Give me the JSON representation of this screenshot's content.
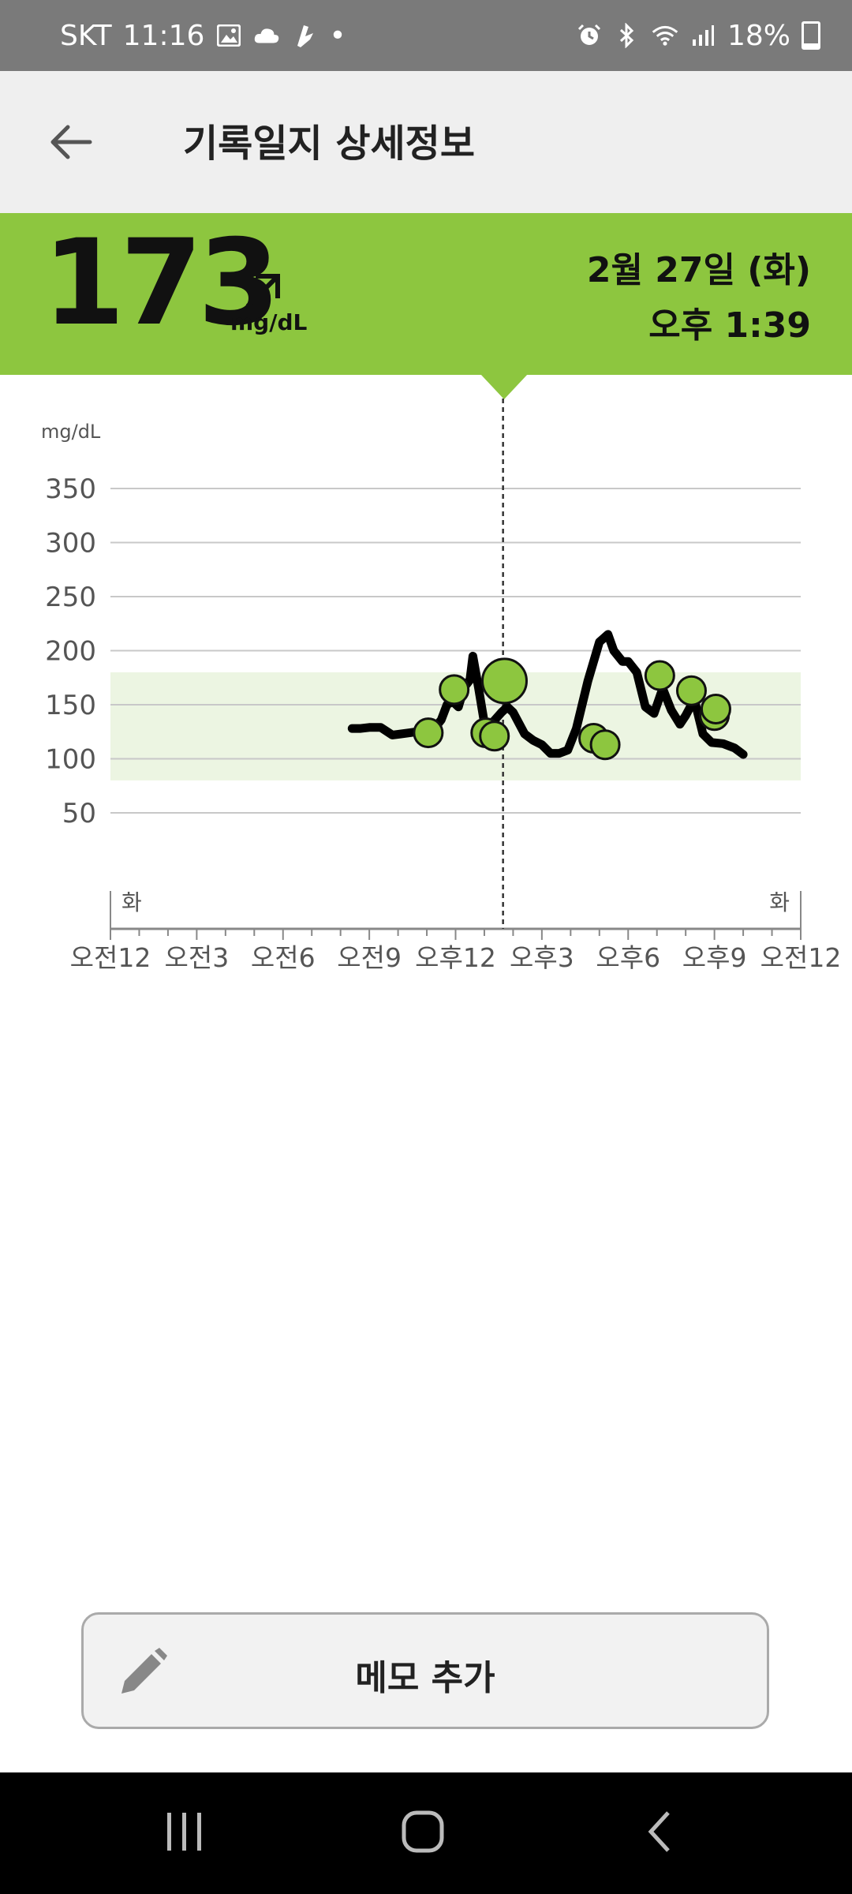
{
  "status_bar": {
    "carrier": "SKT",
    "time": "11:16",
    "battery": "18%",
    "dot": "•",
    "left_icons": [
      "image-icon",
      "cloud-icon",
      "app-icon"
    ],
    "right_icons": [
      "alarm-icon",
      "bluetooth-icon",
      "wifi-icon",
      "signal-icon",
      "battery-icon"
    ]
  },
  "header": {
    "title": "기록일지 상세정보",
    "back_icon": "arrow-left-icon"
  },
  "reading": {
    "value": "173",
    "unit": "mg/dL",
    "trend_icon": "arrow-up-right-icon",
    "date": "2월 27일 (화)",
    "time": "오후 1:39",
    "band_color": "#8dc63f"
  },
  "chart_data": {
    "type": "line",
    "ylabel": "mg/dL",
    "ylim": [
      0,
      375
    ],
    "y_ticks": [
      350,
      300,
      250,
      200,
      150,
      100,
      50
    ],
    "target_range": [
      80,
      180
    ],
    "x_range_hours": [
      0,
      24
    ],
    "x_tick_labels": [
      "오전12",
      "오전3",
      "오전6",
      "오전9",
      "오후12",
      "오후3",
      "오후6",
      "오후9",
      "오전12"
    ],
    "day_labels": [
      "화",
      "화"
    ],
    "cursor_hour": 13.65,
    "line_color": "#000000",
    "point_color": "#8dc63f",
    "series": [
      {
        "points": [
          [
            8.4,
            128
          ],
          [
            8.7,
            128
          ],
          [
            9.0,
            129
          ],
          [
            9.4,
            129
          ],
          [
            9.8,
            122
          ],
          [
            10.4,
            124
          ],
          [
            10.9,
            126
          ],
          [
            11.2,
            126
          ],
          [
            11.5,
            136
          ],
          [
            11.7,
            150
          ],
          [
            11.9,
            153
          ],
          [
            12.1,
            148
          ],
          [
            12.3,
            166
          ],
          [
            12.5,
            173
          ],
          [
            12.6,
            195
          ],
          [
            12.8,
            165
          ],
          [
            13.0,
            133
          ],
          [
            13.3,
            134
          ],
          [
            13.6,
            143
          ],
          [
            13.8,
            148
          ],
          [
            14.0,
            143
          ],
          [
            14.4,
            123
          ],
          [
            14.7,
            117
          ],
          [
            15.0,
            113
          ],
          [
            15.3,
            105
          ],
          [
            15.6,
            105
          ],
          [
            15.9,
            108
          ],
          [
            16.2,
            128
          ],
          [
            16.6,
            172
          ],
          [
            17.0,
            208
          ],
          [
            17.3,
            215
          ],
          [
            17.5,
            200
          ],
          [
            17.8,
            190
          ],
          [
            18.0,
            190
          ],
          [
            18.3,
            180
          ],
          [
            18.6,
            148
          ],
          [
            18.9,
            142
          ],
          [
            19.2,
            165
          ],
          [
            19.5,
            145
          ],
          [
            19.8,
            132
          ],
          [
            20.0,
            140
          ],
          [
            20.3,
            155
          ],
          [
            20.6,
            123
          ],
          [
            20.9,
            115
          ],
          [
            21.3,
            114
          ],
          [
            21.7,
            110
          ],
          [
            22.0,
            104
          ]
        ]
      }
    ],
    "markers": [
      {
        "x": 11.05,
        "y": 124,
        "size": "small"
      },
      {
        "x": 11.95,
        "y": 164,
        "size": "small"
      },
      {
        "x": 13.05,
        "y": 124,
        "size": "small"
      },
      {
        "x": 13.35,
        "y": 121,
        "size": "small"
      },
      {
        "x": 13.7,
        "y": 172,
        "size": "large"
      },
      {
        "x": 16.8,
        "y": 119,
        "size": "small"
      },
      {
        "x": 17.2,
        "y": 113,
        "size": "small"
      },
      {
        "x": 19.1,
        "y": 177,
        "size": "small"
      },
      {
        "x": 20.2,
        "y": 163,
        "size": "small"
      },
      {
        "x": 21.0,
        "y": 140,
        "size": "small"
      },
      {
        "x": 21.05,
        "y": 146,
        "size": "small"
      }
    ]
  },
  "memo": {
    "label": "메모 추가",
    "icon": "pencil-icon"
  },
  "nav": {
    "items": [
      "recent-apps-icon",
      "home-icon",
      "back-icon"
    ]
  }
}
